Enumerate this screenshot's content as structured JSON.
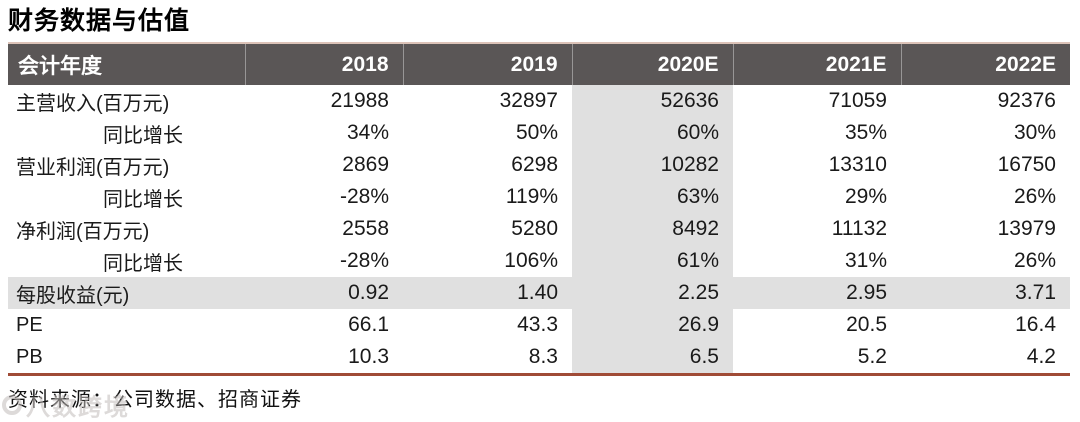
{
  "title": "财务数据与估值",
  "table": {
    "columns": [
      "会计年度",
      "2018",
      "2019",
      "2020E",
      "2021E",
      "2022E"
    ],
    "highlight_column": "2020E",
    "rows": [
      {
        "label": "主营收入(百万元)",
        "indent": false,
        "highlight_row": false,
        "values": [
          "21988",
          "32897",
          "52636",
          "71059",
          "92376"
        ]
      },
      {
        "label": "同比增长",
        "indent": true,
        "highlight_row": false,
        "values": [
          "34%",
          "50%",
          "60%",
          "35%",
          "30%"
        ]
      },
      {
        "label": "营业利润(百万元)",
        "indent": false,
        "highlight_row": false,
        "values": [
          "2869",
          "6298",
          "10282",
          "13310",
          "16750"
        ]
      },
      {
        "label": "同比增长",
        "indent": true,
        "highlight_row": false,
        "values": [
          "-28%",
          "119%",
          "63%",
          "29%",
          "26%"
        ]
      },
      {
        "label": "净利润(百万元)",
        "indent": false,
        "highlight_row": false,
        "values": [
          "2558",
          "5280",
          "8492",
          "11132",
          "13979"
        ]
      },
      {
        "label": "同比增长",
        "indent": true,
        "highlight_row": false,
        "values": [
          "-28%",
          "106%",
          "61%",
          "31%",
          "26%"
        ]
      },
      {
        "label": "每股收益(元)",
        "indent": false,
        "highlight_row": true,
        "values": [
          "0.92",
          "1.40",
          "2.25",
          "2.95",
          "3.71"
        ]
      },
      {
        "label": "PE",
        "indent": false,
        "highlight_row": false,
        "values": [
          "66.1",
          "43.3",
          "26.9",
          "20.5",
          "16.4"
        ]
      },
      {
        "label": "PB",
        "indent": false,
        "highlight_row": false,
        "values": [
          "10.3",
          "8.3",
          "6.5",
          "5.2",
          "4.2"
        ]
      }
    ]
  },
  "footer": {
    "source": "资料来源：公司数据、招商证券"
  },
  "watermark": {
    "icon": "circle-logo",
    "text": "八数跨境"
  },
  "colors": {
    "header_bg": "#5a5656",
    "header_text": "#ffffff",
    "highlight_bg": "#e0e0e0",
    "bottom_border": "#a04b36",
    "top_border": "#dcc3b8"
  }
}
